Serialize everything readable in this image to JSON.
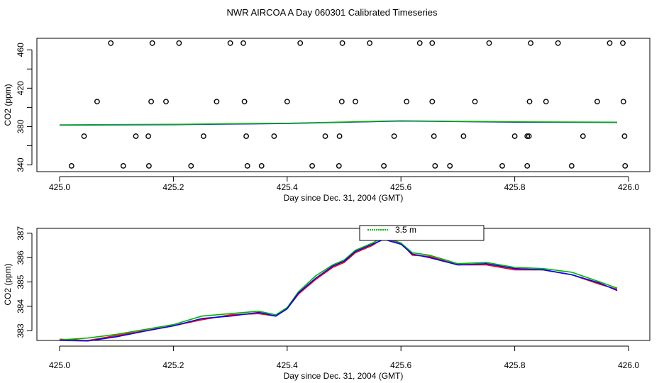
{
  "title": "NWR AIRCOA A  Day 060301  Calibrated Timeseries",
  "colors": {
    "red": "#ff0000",
    "green": "#00b400",
    "blue": "#0000ff",
    "axis": "#000000"
  },
  "chart_data": [
    {
      "type": "scatter",
      "xlabel": "Day since Dec. 31, 2004 (GMT)",
      "ylabel": "CO2 (ppm)",
      "xlim": [
        425.0,
        426.0
      ],
      "ylim": [
        333,
        472
      ],
      "xticks": [
        "425.0",
        "425.2",
        "425.4",
        "425.6",
        "425.8",
        "426.0"
      ],
      "yticks": [
        "340",
        "380",
        "420",
        "460"
      ],
      "points": {
        "x": [
          425.09,
          425.163,
          425.21,
          425.3,
          425.323,
          425.423,
          425.497,
          425.545,
          425.633,
          425.655,
          425.755,
          425.828,
          425.876,
          425.967,
          425.99,
          425.066,
          425.161,
          425.187,
          425.276,
          425.325,
          425.4,
          425.496,
          425.52,
          425.61,
          425.655,
          425.73,
          425.826,
          425.855,
          425.945,
          425.991,
          425.043,
          425.134,
          425.156,
          425.253,
          425.328,
          425.377,
          425.467,
          425.492,
          425.588,
          425.658,
          425.71,
          425.8,
          425.822,
          425.825,
          425.92,
          425.993,
          425.021,
          425.112,
          425.157,
          425.231,
          425.33,
          425.355,
          425.444,
          425.491,
          425.57,
          425.66,
          425.686,
          425.778,
          425.822,
          425.9,
          425.994
        ],
        "y": [
          467,
          467,
          467,
          467,
          467,
          467,
          467,
          467,
          467,
          467,
          467,
          467,
          467,
          467,
          467,
          406,
          406,
          406,
          406,
          406,
          406,
          406,
          406,
          406,
          406,
          406,
          406,
          406,
          406,
          406,
          370,
          370,
          370,
          370,
          370,
          370,
          370,
          370,
          370,
          370,
          370,
          370,
          370,
          370,
          370,
          370,
          339,
          339,
          339,
          339,
          339,
          339,
          339,
          339,
          339,
          339,
          339,
          339,
          339,
          339,
          339
        ]
      },
      "lines": [
        {
          "color": "blue",
          "x": [
            425.0,
            425.2,
            425.4,
            425.6,
            425.8,
            425.98
          ],
          "y": [
            381.5,
            382.0,
            383.2,
            385.8,
            384.6,
            384.3
          ]
        },
        {
          "color": "green",
          "x": [
            425.0,
            425.2,
            425.4,
            425.6,
            425.8,
            425.98
          ],
          "y": [
            381.8,
            382.3,
            383.5,
            386.0,
            384.9,
            384.6
          ]
        }
      ]
    },
    {
      "type": "line",
      "xlabel": "Day since Dec. 31, 2004 (GMT)",
      "ylabel": "CO2 (ppm)",
      "xlim": [
        425.0,
        426.0
      ],
      "ylim": [
        382.6,
        387.2
      ],
      "xticks": [
        "425.0",
        "425.2",
        "425.4",
        "425.6",
        "425.8",
        "426.0"
      ],
      "yticks": [
        "383",
        "384",
        "385",
        "386",
        "387"
      ],
      "legend": {
        "position": "top",
        "visible_entry": "3.5 m"
      },
      "series": [
        {
          "color": "red",
          "x": [
            425.0,
            425.05,
            425.1,
            425.15,
            425.2,
            425.25,
            425.3,
            425.35,
            425.38,
            425.4,
            425.42,
            425.45,
            425.48,
            425.5,
            425.52,
            425.55,
            425.57,
            425.6,
            425.62,
            425.65,
            425.7,
            425.75,
            425.8,
            425.85,
            425.9,
            425.95,
            425.98
          ],
          "y": [
            382.65,
            382.6,
            382.8,
            383.0,
            383.2,
            383.45,
            383.65,
            383.7,
            383.6,
            383.9,
            384.5,
            385.1,
            385.6,
            385.8,
            386.2,
            386.5,
            386.8,
            386.6,
            386.1,
            386.05,
            385.7,
            385.7,
            385.5,
            385.5,
            385.3,
            384.9,
            384.7
          ]
        },
        {
          "color": "green",
          "x": [
            425.0,
            425.05,
            425.1,
            425.15,
            425.2,
            425.25,
            425.3,
            425.35,
            425.38,
            425.4,
            425.42,
            425.45,
            425.48,
            425.5,
            425.52,
            425.55,
            425.57,
            425.6,
            425.62,
            425.65,
            425.7,
            425.75,
            425.8,
            425.85,
            425.9,
            425.95,
            425.98
          ],
          "y": [
            382.62,
            382.7,
            382.85,
            383.05,
            383.25,
            383.6,
            383.7,
            383.8,
            383.65,
            383.95,
            384.6,
            385.25,
            385.7,
            385.9,
            386.3,
            386.6,
            386.85,
            386.6,
            386.2,
            386.1,
            385.75,
            385.8,
            385.6,
            385.55,
            385.4,
            385.0,
            384.75
          ]
        },
        {
          "color": "blue",
          "x": [
            425.0,
            425.05,
            425.1,
            425.15,
            425.2,
            425.25,
            425.3,
            425.35,
            425.38,
            425.4,
            425.42,
            425.45,
            425.48,
            425.5,
            425.52,
            425.55,
            425.57,
            425.6,
            425.62,
            425.65,
            425.7,
            425.75,
            425.8,
            425.85,
            425.9,
            425.95,
            425.98
          ],
          "y": [
            382.6,
            382.58,
            382.75,
            382.98,
            383.2,
            383.5,
            383.6,
            383.75,
            383.6,
            383.9,
            384.55,
            385.15,
            385.65,
            385.85,
            386.25,
            386.55,
            386.75,
            386.55,
            386.15,
            386.0,
            385.7,
            385.75,
            385.55,
            385.5,
            385.3,
            384.95,
            384.65
          ]
        }
      ]
    }
  ]
}
